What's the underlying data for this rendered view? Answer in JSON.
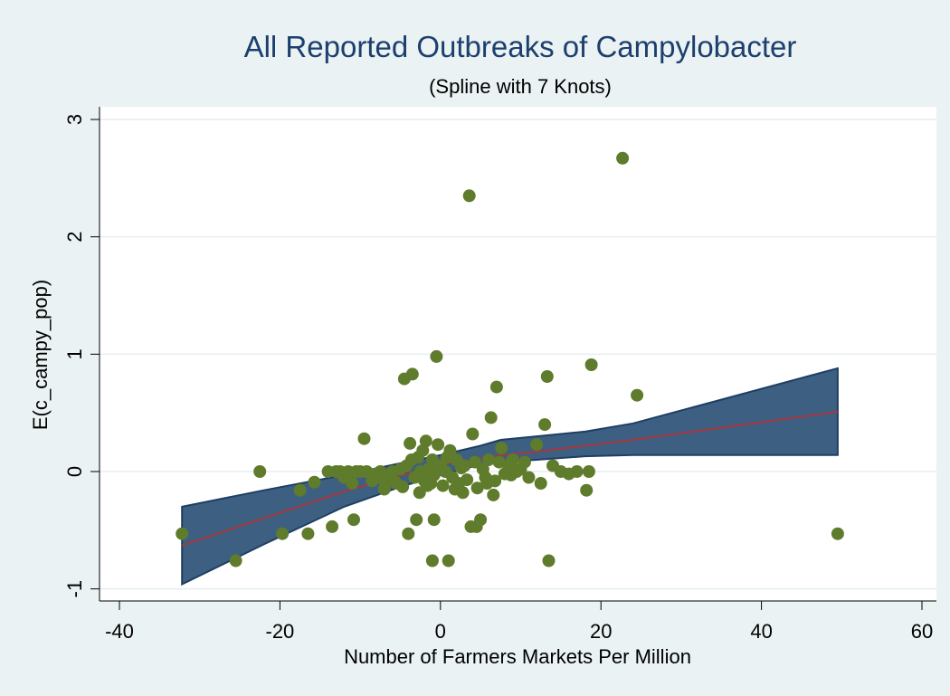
{
  "chart_data": {
    "type": "scatter",
    "title": "All Reported Outbreaks of Campylobacter",
    "subtitle": "(Spline with 7 Knots)",
    "xlabel": "Number of Farmers Markets Per Million",
    "ylabel": "E(c_campy_pop)",
    "xlim": [
      -42,
      62
    ],
    "ylim": [
      -1.1,
      3.1
    ],
    "xticks": [
      -40,
      -20,
      0,
      20,
      40,
      60
    ],
    "yticks": [
      -1,
      0,
      1,
      2,
      3
    ],
    "grid": true,
    "colors": {
      "background": "#eaf2f3",
      "plot_area": "#ffffff",
      "band_fill": "#3d5f82",
      "band_edge": "#1e3f63",
      "fit_line": "#a5383f",
      "points": "#5f7b2c",
      "title": "#1c3f6e"
    },
    "series": [
      {
        "type": "scatter",
        "points": [
          [
            -32.2,
            -0.53
          ],
          [
            -25.5,
            -0.76
          ],
          [
            -22.5,
            0
          ],
          [
            -19.7,
            -0.53
          ],
          [
            -17.5,
            -0.16
          ],
          [
            -16.5,
            -0.53
          ],
          [
            -15.7,
            -0.09
          ],
          [
            -13,
            0
          ],
          [
            -12.5,
            0
          ],
          [
            -12,
            -0.05
          ],
          [
            -11.5,
            0
          ],
          [
            -11,
            -0.1
          ],
          [
            -10.5,
            0
          ],
          [
            -10,
            0
          ],
          [
            -9.5,
            0.28
          ],
          [
            -9.2,
            0
          ],
          [
            -8.5,
            -0.08
          ],
          [
            -8,
            -0.02
          ],
          [
            -7.5,
            0
          ],
          [
            -7,
            -0.15
          ],
          [
            -6.5,
            -0.05
          ],
          [
            -6,
            0
          ],
          [
            -5.5,
            -0.1
          ],
          [
            -5,
            0.02
          ],
          [
            -4.7,
            -0.13
          ],
          [
            -4.5,
            0.79
          ],
          [
            -4.2,
            0.05
          ],
          [
            -4,
            -0.53
          ],
          [
            -3.8,
            0.24
          ],
          [
            -3.5,
            0.83
          ],
          [
            -3.2,
            -0.05
          ],
          [
            -3,
            -0.41
          ],
          [
            -2.8,
            0.12
          ],
          [
            -2.5,
            0
          ],
          [
            -2.2,
            0.18
          ],
          [
            -2,
            -0.08
          ],
          [
            -1.8,
            0.26
          ],
          [
            -1.5,
            0.02
          ],
          [
            -1.2,
            -0.1
          ],
          [
            -1,
            0.1
          ],
          [
            -0.8,
            -0.03
          ],
          [
            -0.5,
            0.98
          ],
          [
            -0.3,
            0.23
          ],
          [
            0,
            0.05
          ],
          [
            0.3,
            -0.12
          ],
          [
            0.6,
            0
          ],
          [
            1,
            -0.76
          ],
          [
            1.2,
            0.18
          ],
          [
            1.5,
            -0.05
          ],
          [
            2,
            0.1
          ],
          [
            2.3,
            -0.1
          ],
          [
            2.6,
            0.03
          ],
          [
            3,
            0.05
          ],
          [
            3.3,
            -0.07
          ],
          [
            3.6,
            2.35
          ],
          [
            3.8,
            -0.47
          ],
          [
            4,
            0.32
          ],
          [
            4.3,
            0.08
          ],
          [
            4.6,
            -0.14
          ],
          [
            5,
            -0.41
          ],
          [
            5.3,
            0.02
          ],
          [
            5.6,
            -0.05
          ],
          [
            6,
            0.1
          ],
          [
            6.3,
            0.46
          ],
          [
            6.6,
            -0.2
          ],
          [
            7,
            0.72
          ],
          [
            7.3,
            0.08
          ],
          [
            7.6,
            0.2
          ],
          [
            8,
            -0.02
          ],
          [
            8.5,
            0.05
          ],
          [
            9,
            0.1
          ],
          [
            10,
            0.02
          ],
          [
            11,
            -0.05
          ],
          [
            12,
            0.23
          ],
          [
            12.5,
            -0.1
          ],
          [
            13,
            0.4
          ],
          [
            13.3,
            0.81
          ],
          [
            14,
            0.05
          ],
          [
            15,
            0
          ],
          [
            16,
            -0.02
          ],
          [
            17,
            0
          ],
          [
            18.2,
            -0.16
          ],
          [
            18.5,
            0
          ],
          [
            18.8,
            0.91
          ],
          [
            22.7,
            2.67
          ],
          [
            24.5,
            0.65
          ],
          [
            49.5,
            -0.53
          ],
          [
            -13.5,
            -0.47
          ],
          [
            -10.8,
            -0.41
          ],
          [
            -0.8,
            -0.41
          ],
          [
            13.5,
            -0.76
          ],
          [
            -1,
            -0.76
          ],
          [
            4.5,
            -0.47
          ],
          [
            -14,
            0
          ],
          [
            -6.8,
            -0.1
          ],
          [
            -2.6,
            -0.18
          ],
          [
            1.8,
            -0.15
          ],
          [
            5.8,
            -0.1
          ],
          [
            8.8,
            -0.03
          ],
          [
            10.5,
            0.08
          ],
          [
            -7.8,
            -0.05
          ],
          [
            0.8,
            0.12
          ],
          [
            2.8,
            -0.18
          ],
          [
            -5.8,
            -0.08
          ],
          [
            -3.6,
            0.1
          ],
          [
            6.8,
            -0.08
          ],
          [
            9.5,
            0
          ],
          [
            -1.6,
            -0.12
          ]
        ]
      }
    ],
    "fit_line": {
      "name": "",
      "x": [
        -32.2,
        -12,
        0,
        8,
        12,
        18,
        24,
        49.5
      ],
      "y": [
        -0.63,
        -0.17,
        0.06,
        0.14,
        0.17,
        0.22,
        0.27,
        0.51
      ]
    },
    "confidence_band": {
      "x": [
        -32.2,
        -22,
        -12,
        -5,
        0,
        5,
        7.5,
        12,
        18,
        24,
        49.5
      ],
      "upper": [
        -0.3,
        -0.16,
        -0.03,
        0.07,
        0.14,
        0.22,
        0.27,
        0.3,
        0.34,
        0.41,
        0.88
      ],
      "lower": [
        -0.96,
        -0.62,
        -0.3,
        -0.13,
        -0.03,
        0.06,
        0.08,
        0.1,
        0.13,
        0.14,
        0.14
      ]
    }
  }
}
